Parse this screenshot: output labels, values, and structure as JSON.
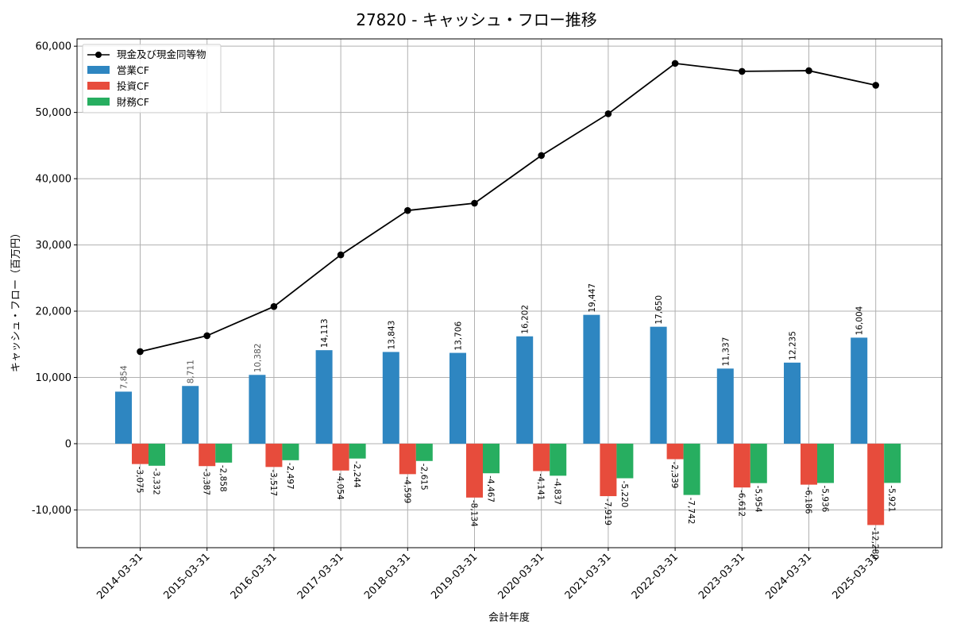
{
  "chart_data": {
    "type": "bar",
    "title": "27820 - キャッシュ・フロー推移",
    "xlabel": "会計年度",
    "ylabel": "キャッシュ・フロー（百万円）",
    "ylim": [
      -15700,
      61100
    ],
    "yticks": [
      -10000,
      0,
      10000,
      20000,
      30000,
      40000,
      50000,
      60000
    ],
    "ytick_labels": [
      "-10,000",
      "0",
      "10,000",
      "20,000",
      "30,000",
      "40,000",
      "50,000",
      "60,000"
    ],
    "grid": true,
    "legend_position": "top-left",
    "categories": [
      "2014-03-31",
      "2015-03-31",
      "2016-03-31",
      "2017-03-31",
      "2018-03-31",
      "2019-03-31",
      "2020-03-31",
      "2021-03-31",
      "2022-03-31",
      "2023-03-31",
      "2024-03-31",
      "2025-03-31"
    ],
    "series": [
      {
        "name": "営業CF",
        "kind": "bar",
        "color": "#2e86c1",
        "values": [
          7854,
          8711,
          10382,
          14113,
          13843,
          13706,
          16202,
          19447,
          17650,
          11337,
          12235,
          16004
        ],
        "labels": [
          "7,854",
          "8,711",
          "10,382",
          "14,113",
          "13,843",
          "13,706",
          "16,202",
          "19,447",
          "17,650",
          "11,337",
          "12,235",
          "16,004"
        ]
      },
      {
        "name": "投資CF",
        "kind": "bar",
        "color": "#e74c3c",
        "values": [
          -3075,
          -3387,
          -3517,
          -4054,
          -4599,
          -8134,
          -4141,
          -7919,
          -2339,
          -6612,
          -6186,
          -12280
        ],
        "labels": [
          "-3,075",
          "-3,387",
          "-3,517",
          "-4,054",
          "-4,599",
          "-8,134",
          "-4,141",
          "-7,919",
          "-2,339",
          "-6,612",
          "-6,186",
          "-12,280"
        ]
      },
      {
        "name": "財務CF",
        "kind": "bar",
        "color": "#27ae60",
        "values": [
          -3332,
          -2858,
          -2497,
          -2244,
          -2615,
          -4467,
          -4837,
          -5220,
          -7742,
          -5954,
          -5936,
          -5921
        ],
        "labels": [
          "-3,332",
          "-2,858",
          "-2,497",
          "-2,244",
          "-2,615",
          "-4,467",
          "-4,837",
          "-5,220",
          "-7,742",
          "-5,954",
          "-5,936",
          "-5,921"
        ]
      },
      {
        "name": "現金及び現金同等物",
        "kind": "line",
        "color": "#000000",
        "values": [
          13900,
          16300,
          20700,
          28500,
          35200,
          36300,
          43500,
          49800,
          57400,
          56200,
          56300,
          54100
        ]
      }
    ]
  }
}
